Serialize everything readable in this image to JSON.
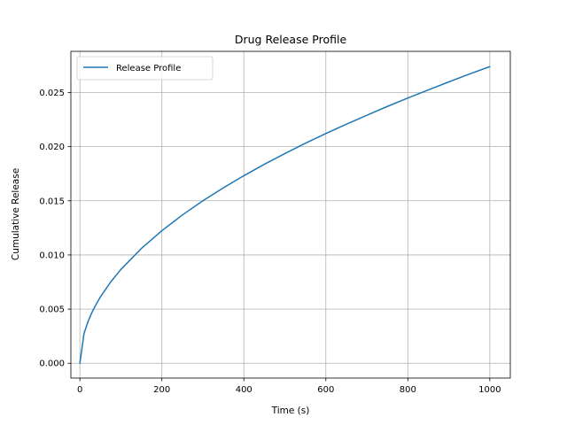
{
  "chart_data": {
    "type": "line",
    "title": "Drug Release Profile",
    "xlabel": "Time (s)",
    "ylabel": "Cumulative Release",
    "xlim": [
      -22,
      1050
    ],
    "ylim": [
      -0.00137,
      0.0288
    ],
    "x_ticks": [
      0,
      200,
      400,
      600,
      800,
      1000
    ],
    "x_tick_labels": [
      "0",
      "200",
      "400",
      "600",
      "800",
      "1000"
    ],
    "y_ticks": [
      0.0,
      0.005,
      0.01,
      0.015,
      0.02,
      0.025
    ],
    "y_tick_labels": [
      "0.000",
      "0.005",
      "0.010",
      "0.015",
      "0.020",
      "0.025"
    ],
    "grid": true,
    "legend": {
      "placement": "top-left",
      "entries": [
        "Release Profile"
      ]
    },
    "series": [
      {
        "name": "Release Profile",
        "color": "#1f77b4",
        "x": [
          0,
          10,
          20,
          30,
          40,
          50,
          75,
          100,
          150,
          200,
          250,
          300,
          350,
          400,
          450,
          500,
          550,
          600,
          650,
          700,
          750,
          800,
          850,
          900,
          950,
          1000
        ],
        "y": [
          0.0,
          0.00274,
          0.00387,
          0.00474,
          0.00547,
          0.00612,
          0.0075,
          0.00866,
          0.0106,
          0.01224,
          0.01369,
          0.015,
          0.0162,
          0.01732,
          0.01837,
          0.01936,
          0.02031,
          0.02121,
          0.02207,
          0.0229,
          0.02371,
          0.02449,
          0.02524,
          0.02598,
          0.0267,
          0.02739
        ]
      }
    ]
  }
}
